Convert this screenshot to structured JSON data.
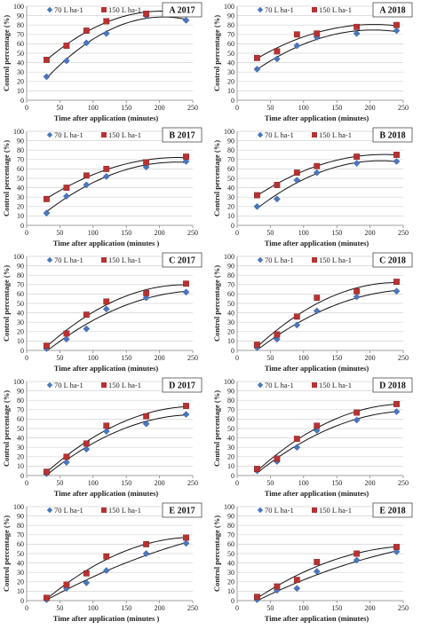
{
  "colors": {
    "series1": "#4a76c0",
    "series2": "#b83232",
    "trend": "#111111",
    "grid": "#d4d4d4"
  },
  "chart_data": [
    {
      "type": "scatter",
      "title": "A 2017",
      "xlabel": "Time after application (minutes)",
      "ylabel": "Control percentage (%)",
      "xlim": [
        0,
        250
      ],
      "ylim": [
        0,
        100
      ],
      "xticks": [
        "0",
        "50",
        "100",
        "150",
        "200",
        "250"
      ],
      "yticks": [
        "0",
        "10",
        "20",
        "30",
        "40",
        "50",
        "60",
        "70",
        "80",
        "90",
        "100"
      ],
      "legend_position": "top-left",
      "series": [
        {
          "name": "70 L ha-1",
          "marker": "diamond",
          "x": [
            30,
            60,
            90,
            120,
            180,
            240
          ],
          "y": [
            25,
            42,
            61,
            71,
            90,
            85
          ]
        },
        {
          "name": "150 L ha-1",
          "marker": "square",
          "x": [
            30,
            60,
            90,
            120,
            180,
            240
          ],
          "y": [
            43,
            58,
            74,
            84,
            92,
            93
          ]
        }
      ]
    },
    {
      "type": "scatter",
      "title": "A 2018",
      "xlabel": "Time after application (minutes)",
      "ylabel": "Control percentage (%)",
      "xlim": [
        0,
        250
      ],
      "ylim": [
        0,
        100
      ],
      "xticks": [
        "0",
        "50",
        "100",
        "150",
        "200",
        "250"
      ],
      "yticks": [
        "0",
        "10",
        "20",
        "30",
        "40",
        "50",
        "60",
        "70",
        "80",
        "90",
        "100"
      ],
      "legend_position": "top-left",
      "series": [
        {
          "name": "70 L ha-1",
          "marker": "diamond",
          "x": [
            30,
            60,
            90,
            120,
            180,
            240
          ],
          "y": [
            33,
            44,
            58,
            67,
            71,
            74
          ]
        },
        {
          "name": "150 L ha-1",
          "marker": "square",
          "x": [
            30,
            60,
            90,
            120,
            180,
            240
          ],
          "y": [
            45,
            52,
            70,
            71,
            78,
            80
          ]
        }
      ]
    },
    {
      "type": "scatter",
      "title": "B 2017",
      "xlabel": "Time after application (minutes )",
      "ylabel": "Control percentage (%)",
      "xlim": [
        0,
        250
      ],
      "ylim": [
        0,
        100
      ],
      "xticks": [
        "0",
        "50",
        "100",
        "150",
        "200",
        "250"
      ],
      "yticks": [
        "0",
        "10",
        "20",
        "30",
        "40",
        "50",
        "60",
        "70",
        "80",
        "90",
        "100"
      ],
      "legend_position": "top-left",
      "series": [
        {
          "name": "70 L ha-1",
          "marker": "diamond",
          "x": [
            30,
            60,
            90,
            120,
            180,
            240
          ],
          "y": [
            13,
            31,
            43,
            52,
            62,
            68
          ]
        },
        {
          "name": "150 L ha-1",
          "marker": "square",
          "x": [
            30,
            60,
            90,
            120,
            180,
            240
          ],
          "y": [
            28,
            40,
            53,
            60,
            67,
            73
          ]
        }
      ]
    },
    {
      "type": "scatter",
      "title": "B 2018",
      "xlabel": "Time after application (minutes)",
      "ylabel": "Control percentage (%)",
      "xlim": [
        0,
        250
      ],
      "ylim": [
        0,
        100
      ],
      "xticks": [
        "0",
        "50",
        "100",
        "150",
        "200",
        "250"
      ],
      "yticks": [
        "0",
        "10",
        "20",
        "30",
        "40",
        "50",
        "60",
        "70",
        "80",
        "90",
        "100"
      ],
      "legend_position": "top-left",
      "series": [
        {
          "name": "70 L ha-1",
          "marker": "diamond",
          "x": [
            30,
            60,
            90,
            120,
            180,
            240
          ],
          "y": [
            20,
            28,
            48,
            56,
            66,
            68
          ]
        },
        {
          "name": "150 L ha-1",
          "marker": "square",
          "x": [
            30,
            60,
            90,
            120,
            180,
            240
          ],
          "y": [
            32,
            43,
            56,
            63,
            73,
            75
          ]
        }
      ]
    },
    {
      "type": "scatter",
      "title": "C 2017",
      "xlabel": "Time after application (minutes)",
      "ylabel": "Control percentage (%)",
      "xlim": [
        0,
        250
      ],
      "ylim": [
        0,
        100
      ],
      "xticks": [
        "0",
        "50",
        "100",
        "150",
        "200",
        "250"
      ],
      "yticks": [
        "0",
        "10",
        "20",
        "30",
        "40",
        "50",
        "60",
        "70",
        "80",
        "90",
        "100"
      ],
      "legend_position": "top-left",
      "series": [
        {
          "name": "70 L ha-1",
          "marker": "diamond",
          "x": [
            30,
            60,
            90,
            120,
            180,
            240
          ],
          "y": [
            2,
            12,
            23,
            44,
            56,
            62
          ]
        },
        {
          "name": "150 L ha-1",
          "marker": "square",
          "x": [
            30,
            60,
            90,
            120,
            180,
            240
          ],
          "y": [
            5,
            18,
            38,
            52,
            61,
            71
          ]
        }
      ]
    },
    {
      "type": "scatter",
      "title": "C 2018",
      "xlabel": "Time after application (minutes)",
      "ylabel": "Control percentage (%)",
      "xlim": [
        0,
        250
      ],
      "ylim": [
        0,
        100
      ],
      "xticks": [
        "0",
        "50",
        "100",
        "150",
        "200",
        "250"
      ],
      "yticks": [
        "0",
        "10",
        "20",
        "30",
        "40",
        "50",
        "60",
        "70",
        "80",
        "90",
        "100"
      ],
      "legend_position": "top-left",
      "series": [
        {
          "name": "70 L ha-1",
          "marker": "diamond",
          "x": [
            30,
            60,
            90,
            120,
            180,
            240
          ],
          "y": [
            3,
            12,
            27,
            42,
            57,
            63
          ]
        },
        {
          "name": "150 L ha-1",
          "marker": "square",
          "x": [
            30,
            60,
            90,
            120,
            180,
            240
          ],
          "y": [
            6,
            17,
            36,
            56,
            63,
            73
          ]
        }
      ]
    },
    {
      "type": "scatter",
      "title": "D 2017",
      "xlabel": "Time after application (minutes)",
      "ylabel": "Control percentage (%)",
      "xlim": [
        0,
        250
      ],
      "ylim": [
        0,
        100
      ],
      "xticks": [
        "0",
        "50",
        "100",
        "150",
        "200",
        "250"
      ],
      "yticks": [
        "0",
        "10",
        "20",
        "30",
        "40",
        "50",
        "60",
        "70",
        "80",
        "90",
        "100"
      ],
      "legend_position": "top-left",
      "series": [
        {
          "name": "70 L ha-1",
          "marker": "diamond",
          "x": [
            30,
            60,
            90,
            120,
            180,
            240
          ],
          "y": [
            2,
            14,
            28,
            47,
            55,
            65
          ]
        },
        {
          "name": "150 L ha-1",
          "marker": "square",
          "x": [
            30,
            60,
            90,
            120,
            180,
            240
          ],
          "y": [
            4,
            20,
            34,
            53,
            63,
            74
          ]
        }
      ]
    },
    {
      "type": "scatter",
      "title": "D 2018",
      "xlabel": "Time after application (minutes)",
      "ylabel": "Control percentage (%)",
      "xlim": [
        0,
        250
      ],
      "ylim": [
        0,
        100
      ],
      "xticks": [
        "0",
        "50",
        "100",
        "150",
        "200",
        "250"
      ],
      "yticks": [
        "0",
        "10",
        "20",
        "30",
        "40",
        "50",
        "60",
        "70",
        "80",
        "90",
        "100"
      ],
      "legend_position": "top-left",
      "series": [
        {
          "name": "70 L ha-1",
          "marker": "diamond",
          "x": [
            30,
            60,
            90,
            120,
            180,
            240
          ],
          "y": [
            5,
            15,
            30,
            48,
            59,
            68
          ]
        },
        {
          "name": "150 L ha-1",
          "marker": "square",
          "x": [
            30,
            60,
            90,
            120,
            180,
            240
          ],
          "y": [
            7,
            18,
            39,
            53,
            67,
            76
          ]
        }
      ]
    },
    {
      "type": "scatter",
      "title": "E 2017",
      "xlabel": "Time after application (minutes )",
      "ylabel": "Control percentage (%)",
      "xlim": [
        0,
        250
      ],
      "ylim": [
        0,
        100
      ],
      "xticks": [
        "0",
        "50",
        "100",
        "150",
        "200",
        "250"
      ],
      "yticks": [
        "0",
        "10",
        "20",
        "30",
        "40",
        "50",
        "60",
        "70",
        "80",
        "90",
        "100"
      ],
      "legend_position": "top-left",
      "series": [
        {
          "name": "70 L ha-1",
          "marker": "diamond",
          "x": [
            30,
            60,
            90,
            120,
            180,
            240
          ],
          "y": [
            1,
            13,
            19,
            32,
            50,
            61
          ]
        },
        {
          "name": "150 L ha-1",
          "marker": "square",
          "x": [
            30,
            60,
            90,
            120,
            180,
            240
          ],
          "y": [
            3,
            17,
            29,
            47,
            60,
            67
          ]
        }
      ]
    },
    {
      "type": "scatter",
      "title": "E 2018",
      "xlabel": "Time after application (minutes)",
      "ylabel": "Control percentage (%)",
      "xlim": [
        0,
        250
      ],
      "ylim": [
        0,
        100
      ],
      "xticks": [
        "0",
        "50",
        "100",
        "150",
        "200",
        "250"
      ],
      "yticks": [
        "0",
        "10",
        "20",
        "30",
        "40",
        "50",
        "60",
        "70",
        "80",
        "90",
        "100"
      ],
      "legend_position": "top-left",
      "series": [
        {
          "name": "70 L ha-1",
          "marker": "diamond",
          "x": [
            30,
            60,
            90,
            120,
            180,
            240
          ],
          "y": [
            1,
            11,
            13,
            31,
            43,
            52
          ]
        },
        {
          "name": "150 L ha-1",
          "marker": "square",
          "x": [
            30,
            60,
            90,
            120,
            180,
            240
          ],
          "y": [
            4,
            15,
            22,
            41,
            50,
            57
          ]
        }
      ]
    }
  ]
}
